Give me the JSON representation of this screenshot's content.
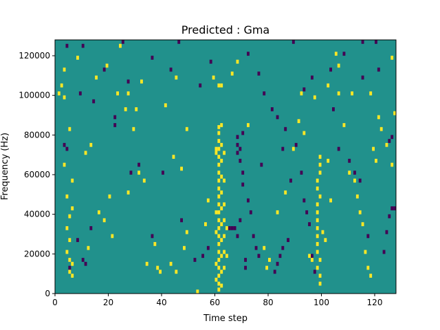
{
  "chart_data": {
    "type": "heatmap",
    "title": "Predicted : Gma",
    "xlabel": "Time step",
    "ylabel": "Frequency (Hz)",
    "xlim": [
      0,
      128
    ],
    "ylim": [
      0,
      128000
    ],
    "xticks": [
      0,
      20,
      40,
      60,
      80,
      100,
      120
    ],
    "xtick_labels": [
      "0",
      "20",
      "40",
      "60",
      "80",
      "100",
      "120"
    ],
    "yticks": [
      0,
      20000,
      40000,
      60000,
      80000,
      100000,
      120000
    ],
    "ytick_labels": [
      "0",
      "20000",
      "40000",
      "60000",
      "80000",
      "100000",
      "120000"
    ],
    "grid": false,
    "legend": "none",
    "colormap": "viridis",
    "background_value": 0,
    "background_color": "#21918c",
    "value_colors": {
      "1": "#fde725",
      "-1": "#440154"
    },
    "bin_width_hz": 1000,
    "cells_note": "each cell = [time_step, frequency_hz, value]; value 1 = high (yellow), -1 = low (purple)",
    "cells": [
      [
        61,
        83000,
        1
      ],
      [
        61,
        80000,
        1
      ],
      [
        61,
        76000,
        1
      ],
      [
        61,
        72000,
        1
      ],
      [
        61,
        68000,
        1
      ],
      [
        61,
        64000,
        1
      ],
      [
        61,
        60000,
        1
      ],
      [
        61,
        56000,
        1
      ],
      [
        61,
        52000,
        1
      ],
      [
        61,
        48000,
        1
      ],
      [
        61,
        44000,
        1
      ],
      [
        61,
        40000,
        1
      ],
      [
        61,
        36000,
        1
      ],
      [
        61,
        32000,
        1
      ],
      [
        61,
        28000,
        1
      ],
      [
        61,
        24000,
        1
      ],
      [
        61,
        20000,
        1
      ],
      [
        61,
        16000,
        1
      ],
      [
        61,
        12000,
        1
      ],
      [
        61,
        8000,
        1
      ],
      [
        61,
        4000,
        1
      ],
      [
        61,
        1000,
        1
      ],
      [
        62,
        84000,
        1
      ],
      [
        62,
        74000,
        1
      ],
      [
        62,
        66000,
        1
      ],
      [
        62,
        58000,
        1
      ],
      [
        62,
        50000,
        1
      ],
      [
        62,
        42000,
        1
      ],
      [
        62,
        34000,
        1
      ],
      [
        62,
        26000,
        1
      ],
      [
        62,
        18000,
        1
      ],
      [
        62,
        10000,
        1
      ],
      [
        62,
        3000,
        1
      ],
      [
        60,
        72000,
        1
      ],
      [
        60,
        70000,
        1
      ],
      [
        60,
        40000,
        1
      ],
      [
        60,
        30000,
        1
      ],
      [
        60,
        14000,
        1
      ],
      [
        60,
        6000,
        1
      ],
      [
        63,
        70000,
        1
      ],
      [
        63,
        56000,
        1
      ],
      [
        63,
        44000,
        1
      ],
      [
        63,
        36000,
        1
      ],
      [
        63,
        28000,
        1
      ],
      [
        63,
        20000,
        1
      ],
      [
        63,
        12000,
        1
      ],
      [
        64,
        32000,
        1
      ],
      [
        64,
        18000,
        1
      ],
      [
        62,
        104000,
        1
      ],
      [
        61,
        104000,
        1
      ],
      [
        98,
        56000,
        1
      ],
      [
        98,
        52000,
        1
      ],
      [
        98,
        44000,
        1
      ],
      [
        98,
        40000,
        1
      ],
      [
        98,
        36000,
        1
      ],
      [
        98,
        32000,
        1
      ],
      [
        98,
        28000,
        1
      ],
      [
        98,
        24000,
        1
      ],
      [
        98,
        20000,
        1
      ],
      [
        99,
        68000,
        1
      ],
      [
        99,
        64000,
        1
      ],
      [
        99,
        60000,
        1
      ],
      [
        99,
        48000,
        1
      ],
      [
        99,
        16000,
        1
      ],
      [
        99,
        8000,
        1
      ],
      [
        99,
        4000,
        1
      ],
      [
        98,
        12000,
        1
      ],
      [
        68,
        78000,
        -1
      ],
      [
        68,
        74000,
        -1
      ],
      [
        68,
        70000,
        -1
      ],
      [
        69,
        72000,
        -1
      ],
      [
        69,
        66000,
        -1
      ],
      [
        70,
        80000,
        -1
      ],
      [
        70,
        60000,
        -1
      ],
      [
        70,
        54000,
        -1
      ],
      [
        67,
        32000,
        -1
      ],
      [
        68,
        28000,
        -1
      ],
      [
        69,
        36000,
        -1
      ],
      [
        71,
        16000,
        -1
      ],
      [
        71,
        12000,
        -1
      ],
      [
        66,
        32000,
        -1
      ],
      [
        65,
        32000,
        -1
      ],
      [
        72,
        46000,
        -1
      ],
      [
        73,
        40000,
        -1
      ],
      [
        74,
        28000,
        -1
      ],
      [
        75,
        22000,
        -1
      ],
      [
        76,
        18000,
        -1
      ],
      [
        77,
        64000,
        -1
      ],
      [
        85,
        72000,
        -1
      ],
      [
        87,
        26000,
        -1
      ],
      [
        85,
        22000,
        -1
      ],
      [
        84,
        18000,
        -1
      ],
      [
        83,
        14000,
        -1
      ],
      [
        82,
        10000,
        -1
      ],
      [
        93,
        46000,
        -1
      ],
      [
        94,
        40000,
        -1
      ],
      [
        95,
        34000,
        -1
      ],
      [
        96,
        18000,
        -1
      ],
      [
        97,
        10000,
        -1
      ],
      [
        104,
        92000,
        -1
      ],
      [
        106,
        72000,
        -1
      ],
      [
        110,
        66000,
        -1
      ],
      [
        112,
        60000,
        -1
      ],
      [
        114,
        56000,
        -1
      ],
      [
        117,
        28000,
        -1
      ],
      [
        123,
        20000,
        -1
      ],
      [
        124,
        30000,
        -1
      ],
      [
        125,
        38000,
        -1
      ],
      [
        126,
        42000,
        -1
      ],
      [
        127,
        42000,
        -1
      ],
      [
        126,
        78000,
        -1
      ],
      [
        125,
        76000,
        -1
      ],
      [
        115,
        108000,
        -1
      ],
      [
        121,
        112000,
        -1
      ],
      [
        88,
        56000,
        -1
      ],
      [
        90,
        74000,
        -1
      ],
      [
        92,
        60000,
        -1
      ],
      [
        10,
        16000,
        -1
      ],
      [
        11,
        14000,
        -1
      ],
      [
        5,
        12000,
        -1
      ],
      [
        8,
        26000,
        -1
      ],
      [
        13,
        32000,
        -1
      ],
      [
        3,
        74000,
        -1
      ],
      [
        4,
        72000,
        -1
      ],
      [
        22,
        88000,
        -1
      ],
      [
        22,
        84000,
        -1
      ],
      [
        28,
        60000,
        -1
      ],
      [
        31,
        64000,
        -1
      ],
      [
        36,
        28000,
        -1
      ],
      [
        40,
        60000,
        -1
      ],
      [
        47,
        36000,
        -1
      ],
      [
        52,
        16000,
        -1
      ],
      [
        55,
        18000,
        -1
      ],
      [
        57,
        22000,
        -1
      ],
      [
        72,
        120000,
        -1
      ],
      [
        76,
        110000,
        -1
      ],
      [
        78,
        100000,
        -1
      ],
      [
        81,
        92000,
        -1
      ],
      [
        83,
        88000,
        -1
      ],
      [
        86,
        82000,
        -1
      ],
      [
        93,
        102000,
        -1
      ],
      [
        96,
        108000,
        -1
      ],
      [
        103,
        112000,
        -1
      ],
      [
        108,
        120000,
        -1
      ],
      [
        58,
        116000,
        -1
      ],
      [
        54,
        104000,
        -1
      ],
      [
        43,
        112000,
        -1
      ],
      [
        36,
        118000,
        -1
      ],
      [
        27,
        106000,
        -1
      ],
      [
        18,
        112000,
        -1
      ],
      [
        14,
        96000,
        -1
      ],
      [
        9,
        100000,
        -1
      ],
      [
        4,
        124000,
        -1
      ],
      [
        10,
        124000,
        -1
      ],
      [
        25,
        126000,
        -1
      ],
      [
        46,
        126000,
        -1
      ],
      [
        89,
        126000,
        -1
      ],
      [
        115,
        126000,
        -1
      ],
      [
        120,
        126000,
        -1
      ],
      [
        5,
        16000,
        1
      ],
      [
        6,
        14000,
        1
      ],
      [
        5,
        10000,
        1
      ],
      [
        6,
        8000,
        1
      ],
      [
        4,
        20000,
        1
      ],
      [
        5,
        26000,
        1
      ],
      [
        4,
        32000,
        1
      ],
      [
        5,
        38000,
        1
      ],
      [
        6,
        42000,
        1
      ],
      [
        4,
        48000,
        1
      ],
      [
        6,
        56000,
        1
      ],
      [
        3,
        64000,
        1
      ],
      [
        5,
        82000,
        1
      ],
      [
        3,
        98000,
        1
      ],
      [
        1,
        100000,
        1
      ],
      [
        2,
        104000,
        1
      ],
      [
        3,
        112000,
        1
      ],
      [
        8,
        118000,
        1
      ],
      [
        15,
        108000,
        1
      ],
      [
        19,
        114000,
        1
      ],
      [
        24,
        124000,
        1
      ],
      [
        23,
        100000,
        1
      ],
      [
        27,
        100000,
        1
      ],
      [
        26,
        92000,
        1
      ],
      [
        30,
        92000,
        1
      ],
      [
        29,
        82000,
        1
      ],
      [
        32,
        106000,
        1
      ],
      [
        31,
        60000,
        1
      ],
      [
        37,
        24000,
        1
      ],
      [
        38,
        12000,
        1
      ],
      [
        39,
        10000,
        1
      ],
      [
        34,
        14000,
        1
      ],
      [
        43,
        14000,
        1
      ],
      [
        45,
        10000,
        1
      ],
      [
        48,
        22000,
        1
      ],
      [
        49,
        30000,
        1
      ],
      [
        53,
        0,
        1
      ],
      [
        56,
        34000,
        1
      ],
      [
        57,
        46000,
        1
      ],
      [
        59,
        108000,
        1
      ],
      [
        66,
        110000,
        1
      ],
      [
        68,
        116000,
        1
      ],
      [
        72,
        84000,
        1
      ],
      [
        78,
        22000,
        1
      ],
      [
        79,
        12000,
        1
      ],
      [
        80,
        16000,
        1
      ],
      [
        83,
        40000,
        1
      ],
      [
        86,
        50000,
        1
      ],
      [
        89,
        72000,
        1
      ],
      [
        91,
        86000,
        1
      ],
      [
        93,
        80000,
        1
      ],
      [
        95,
        18000,
        1
      ],
      [
        96,
        16000,
        1
      ],
      [
        102,
        104000,
        1
      ],
      [
        106,
        114000,
        1
      ],
      [
        108,
        84000,
        1
      ],
      [
        110,
        60000,
        1
      ],
      [
        112,
        56000,
        1
      ],
      [
        113,
        48000,
        1
      ],
      [
        114,
        40000,
        1
      ],
      [
        115,
        34000,
        1
      ],
      [
        116,
        20000,
        1
      ],
      [
        117,
        12000,
        1
      ],
      [
        118,
        8000,
        1
      ],
      [
        119,
        72000,
        1
      ],
      [
        120,
        66000,
        1
      ],
      [
        121,
        88000,
        1
      ],
      [
        122,
        82000,
        1
      ],
      [
        124,
        74000,
        1
      ],
      [
        126,
        64000,
        1
      ],
      [
        127,
        90000,
        1
      ],
      [
        126,
        118000,
        1
      ],
      [
        111,
        100000,
        1
      ],
      [
        106,
        100000,
        1
      ],
      [
        118,
        100000,
        1
      ],
      [
        97,
        98000,
        1
      ],
      [
        92,
        100000,
        1
      ],
      [
        105,
        120000,
        1
      ],
      [
        103,
        46000,
        1
      ],
      [
        102,
        66000,
        1
      ],
      [
        100,
        30000,
        1
      ],
      [
        101,
        26000,
        1
      ],
      [
        44,
        68000,
        1
      ],
      [
        47,
        62000,
        1
      ],
      [
        49,
        82000,
        1
      ],
      [
        45,
        108000,
        1
      ],
      [
        41,
        94000,
        1
      ],
      [
        33,
        56000,
        1
      ],
      [
        27,
        50000,
        1
      ],
      [
        20,
        48000,
        1
      ],
      [
        16,
        40000,
        1
      ],
      [
        18,
        36000,
        1
      ],
      [
        21,
        28000,
        1
      ],
      [
        12,
        22000,
        1
      ],
      [
        11,
        70000,
        1
      ],
      [
        13,
        74000,
        1
      ]
    ]
  }
}
